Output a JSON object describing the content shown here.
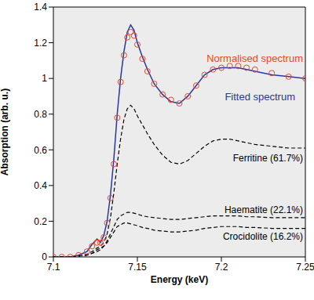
{
  "chart_data": {
    "type": "line",
    "x_label": "Energy (keV)",
    "y_label": "Absorption (arb. u.)",
    "x": [
      7.1,
      7.105,
      7.11,
      7.115,
      7.12,
      7.123,
      7.126,
      7.128,
      7.13,
      7.132,
      7.134,
      7.136,
      7.138,
      7.14,
      7.142,
      7.144,
      7.146,
      7.148,
      7.15,
      7.153,
      7.156,
      7.16,
      7.165,
      7.17,
      7.175,
      7.18,
      7.185,
      7.19,
      7.195,
      7.2,
      7.205,
      7.21,
      7.215,
      7.22,
      7.23,
      7.24,
      7.25
    ],
    "series": [
      {
        "name": "Fitted spectrum",
        "color": "#2838a0",
        "marker": "none",
        "line_style": "solid",
        "values": [
          0,
          0,
          0,
          0.01,
          0.03,
          0.07,
          0.1,
          0.08,
          0.12,
          0.2,
          0.35,
          0.55,
          0.8,
          1.0,
          1.15,
          1.26,
          1.3,
          1.27,
          1.2,
          1.12,
          1.05,
          0.97,
          0.91,
          0.87,
          0.86,
          0.9,
          0.96,
          1.02,
          1.05,
          1.06,
          1.06,
          1.06,
          1.05,
          1.04,
          1.02,
          1.01,
          1.0
        ]
      },
      {
        "name": "Ferritine (61.7%)",
        "color": "#000000",
        "marker": "none",
        "line_style": "dashed",
        "values": [
          0,
          0,
          0,
          0.005,
          0.015,
          0.03,
          0.05,
          0.06,
          0.08,
          0.13,
          0.22,
          0.36,
          0.52,
          0.66,
          0.77,
          0.83,
          0.85,
          0.83,
          0.79,
          0.74,
          0.69,
          0.63,
          0.57,
          0.53,
          0.52,
          0.54,
          0.58,
          0.62,
          0.65,
          0.66,
          0.66,
          0.65,
          0.64,
          0.63,
          0.62,
          0.61,
          0.61
        ]
      },
      {
        "name": "Haematite (22.1%)",
        "color": "#000000",
        "marker": "none",
        "line_style": "dashed",
        "values": [
          0,
          0,
          0,
          0.005,
          0.01,
          0.02,
          0.04,
          0.05,
          0.06,
          0.09,
          0.13,
          0.17,
          0.21,
          0.23,
          0.24,
          0.25,
          0.25,
          0.245,
          0.24,
          0.23,
          0.225,
          0.22,
          0.215,
          0.21,
          0.21,
          0.215,
          0.22,
          0.225,
          0.23,
          0.23,
          0.23,
          0.23,
          0.225,
          0.225,
          0.22,
          0.22,
          0.22
        ]
      },
      {
        "name": "Crocidolite (16.2%)",
        "color": "#000000",
        "marker": "none",
        "line_style": "dashed",
        "values": [
          0,
          0,
          0,
          0.005,
          0.01,
          0.02,
          0.03,
          0.04,
          0.06,
          0.08,
          0.11,
          0.14,
          0.17,
          0.18,
          0.19,
          0.19,
          0.185,
          0.18,
          0.175,
          0.165,
          0.16,
          0.15,
          0.145,
          0.14,
          0.14,
          0.145,
          0.15,
          0.16,
          0.165,
          0.17,
          0.17,
          0.17,
          0.165,
          0.165,
          0.16,
          0.16,
          0.16
        ]
      },
      {
        "name": "Normalised spectrum",
        "color": "#e8472a",
        "marker": "circle",
        "line_style": "none",
        "values": [
          0,
          0,
          0,
          0.01,
          0.03,
          0.06,
          0.08,
          0.08,
          0.11,
          0.19,
          0.33,
          0.52,
          0.78,
          0.98,
          1.13,
          1.23,
          1.26,
          1.24,
          1.19,
          1.11,
          1.04,
          0.97,
          0.91,
          0.88,
          0.86,
          0.9,
          0.96,
          1.02,
          1.05,
          1.06,
          1.07,
          1.07,
          1.06,
          1.05,
          1.03,
          1.01,
          1.0
        ]
      }
    ],
    "xlim": [
      7.1,
      7.25
    ],
    "xticks": [
      7.1,
      7.15,
      7.2,
      7.25
    ],
    "ylim": [
      0,
      1.4
    ],
    "yticks": [
      0,
      0.2,
      0.4,
      0.6,
      0.8,
      1,
      1.2,
      1.4
    ],
    "grid": false
  }
}
